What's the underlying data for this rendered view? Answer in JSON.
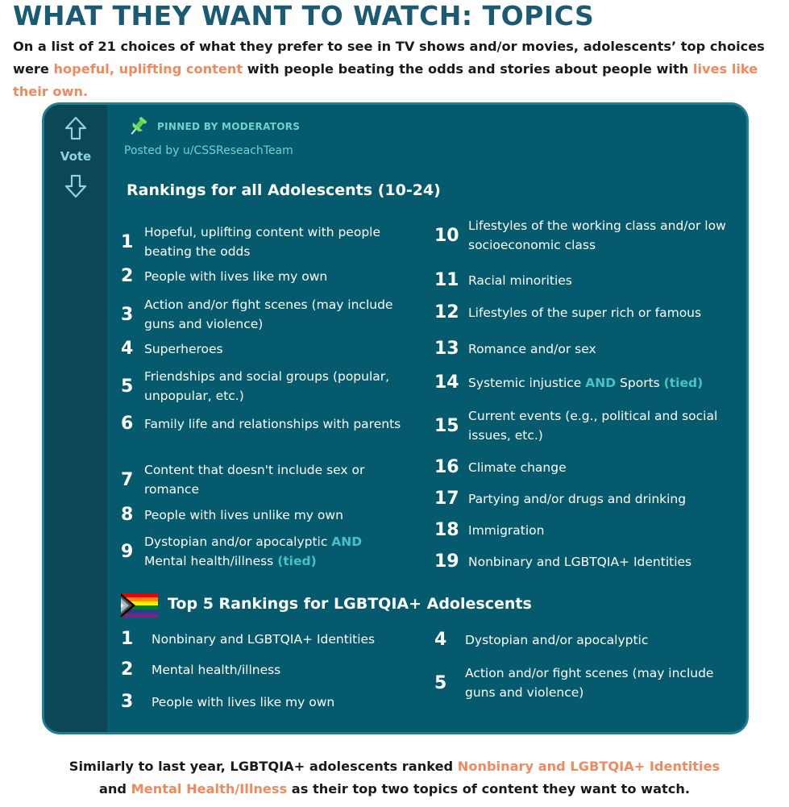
{
  "title": "WHAT THEY WANT TO WATCH: TOPICS",
  "intro": {
    "part1": "On a list of 21 choices of what they prefer to see in TV shows and/or movies, adolescents’ top choices were ",
    "hl1": "hopeful, uplifting content",
    "part2": " with people beating the odds and stories about people with ",
    "hl2": "lives like their own."
  },
  "post": {
    "vote_label": "Vote",
    "pinned_label": "PINNED BY MODERATORS",
    "posted_by": "Posted by u/CSSReseachTeam"
  },
  "all_rankings": {
    "title": "Rankings for all Adolescents (10-24)",
    "items": [
      {
        "rank": "1",
        "text": "Hopeful, uplifting content with people beating the odds"
      },
      {
        "rank": "2",
        "text": "People with lives like my own"
      },
      {
        "rank": "3",
        "text": "Action and/or fight scenes (may include guns and violence)"
      },
      {
        "rank": "4",
        "text": "Superheroes"
      },
      {
        "rank": "5",
        "text": "Friendships and social groups (popular, unpopular, etc.)"
      },
      {
        "rank": "6",
        "text": "Family life and relationships with parents"
      },
      {
        "rank": "7",
        "text": "Content that doesn't include sex or romance"
      },
      {
        "rank": "8",
        "text": "People with lives unlike my own"
      },
      {
        "rank": "9",
        "text_a": "Dystopian and/or apocalyptic ",
        "and": "AND",
        "text_b": "Mental health/illness ",
        "tied": "(tied)"
      },
      {
        "rank": "10",
        "text": "Lifestyles of the working class and/or low socioeconomic class"
      },
      {
        "rank": "11",
        "text": "Racial minorities"
      },
      {
        "rank": "12",
        "text": "Lifestyles of the super rich or famous"
      },
      {
        "rank": "13",
        "text": "Romance and/or sex"
      },
      {
        "rank": "14",
        "text_a": "Systemic injustice ",
        "and": "AND",
        "text_b": " Sports ",
        "tied": "(tied)"
      },
      {
        "rank": "15",
        "text": "Current events (e.g., political and social issues, etc.)"
      },
      {
        "rank": "16",
        "text": "Climate change"
      },
      {
        "rank": "17",
        "text": "Partying and/or drugs and drinking"
      },
      {
        "rank": "18",
        "text": "Immigration"
      },
      {
        "rank": "19",
        "text": "Nonbinary and LGBTQIA+ Identities"
      }
    ]
  },
  "lgbtq_rankings": {
    "title": "Top 5 Rankings for LGBTQIA+ Adolescents",
    "items": [
      {
        "rank": "1",
        "text": "Nonbinary and LGBTQIA+ Identities"
      },
      {
        "rank": "2",
        "text": "Mental health/illness"
      },
      {
        "rank": "3",
        "text": "People with lives like my own"
      },
      {
        "rank": "4",
        "text": "Dystopian and/or apocalyptic"
      },
      {
        "rank": "5",
        "text": "Action and/or fight scenes (may include guns and violence)"
      }
    ]
  },
  "footer": {
    "part1": "Similarly to last year, LGBTQIA+ adolescents ranked ",
    "hl1": "Nonbinary and LGBTQIA+ Identities",
    "part2": "and ",
    "hl2": "Mental Health/Illness",
    "part3": " as their top two topics of content they want to watch."
  },
  "colors": {
    "title": "#1a5a72",
    "highlight": "#f08a5d",
    "card_bg": "#055a6e",
    "vote_bg": "#0b4756",
    "accent_teal": "#49c2c6"
  }
}
